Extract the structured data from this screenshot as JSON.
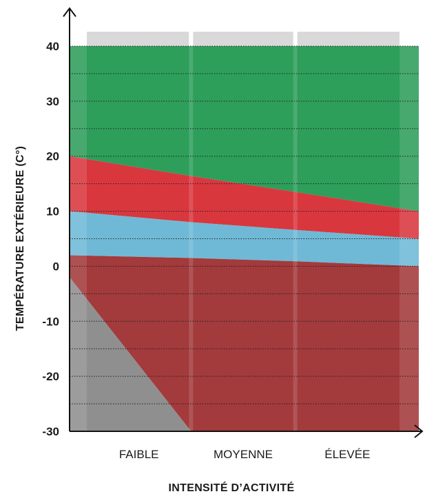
{
  "chart_data": {
    "type": "area",
    "title": "",
    "xlabel": "INTENSITÉ D’ACTIVITÉ",
    "ylabel": "TEMPÉRATURE EXTÉRIEURE (C°)",
    "categories": [
      "FAIBLE",
      "MOYENNE",
      "ÉLEVÉE"
    ],
    "y_ticks": [
      40,
      30,
      20,
      10,
      0,
      -10,
      -20,
      -30
    ],
    "ylim": [
      -30,
      40
    ],
    "grid": true,
    "x": [
      0,
      1,
      2,
      3
    ],
    "zones": [
      {
        "color": "#2e9e5b",
        "values": [
          40,
          40,
          40,
          40
        ]
      },
      {
        "color": "#d9373e",
        "values": [
          20,
          16.4,
          13.5,
          10
        ]
      },
      {
        "color": "#6fb9d6",
        "values": [
          10,
          8,
          6.6,
          5
        ]
      },
      {
        "color": "#a33a3c",
        "values": [
          2,
          1.5,
          0.9,
          0
        ]
      },
      {
        "color": "#8f8f90",
        "values": [
          -2,
          -30,
          -30,
          -30
        ]
      }
    ]
  }
}
